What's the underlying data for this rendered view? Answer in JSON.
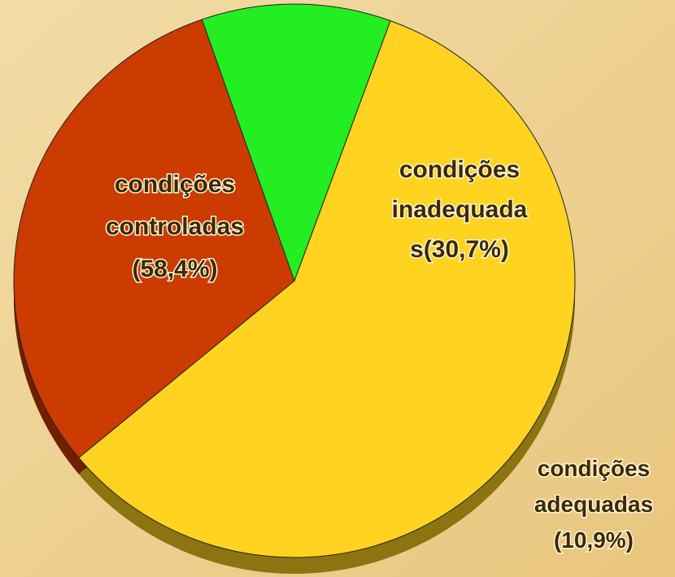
{
  "chart_data": {
    "type": "pie",
    "categories": [
      [
        "condições",
        "controladas"
      ],
      [
        "condições",
        "inadequada",
        "s"
      ],
      [
        "condições",
        "adequadas"
      ]
    ],
    "values": [
      58.4,
      30.7,
      10.9
    ],
    "value_labels": [
      "(58,4%)",
      "(30,7%)",
      "(10,9%)"
    ],
    "colors": [
      "#ffd31f",
      "#cc3b00",
      "#22ee22"
    ]
  }
}
